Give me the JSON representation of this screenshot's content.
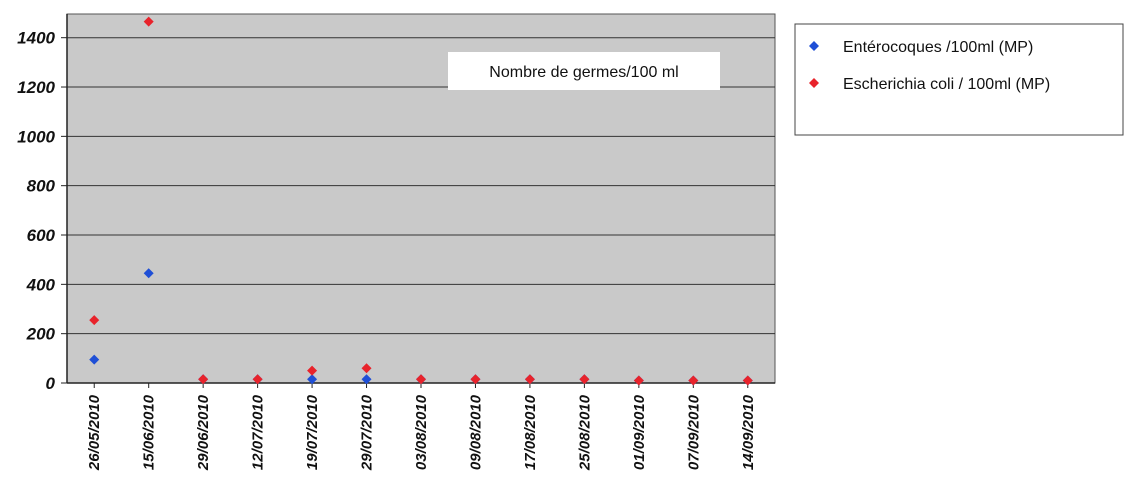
{
  "chart_data": {
    "type": "scatter",
    "title": "",
    "xlabel": "",
    "ylabel": "",
    "annotation": "Nombre de germes/100 ml",
    "categories": [
      "26/05/2010",
      "15/06/2010",
      "29/06/2010",
      "12/07/2010",
      "19/07/2010",
      "29/07/2010",
      "03/08/2010",
      "09/08/2010",
      "17/08/2010",
      "25/08/2010",
      "01/09/2010",
      "07/09/2010",
      "14/09/2010"
    ],
    "ylim": [
      0,
      1500
    ],
    "yticks": [
      0,
      200,
      400,
      600,
      800,
      1000,
      1200,
      1400
    ],
    "grid": true,
    "legend_position": "right",
    "series": [
      {
        "name": "Entérocoques /100ml (MP)",
        "color": "#1f4fd6",
        "marker": "diamond",
        "values": [
          95,
          445,
          15,
          15,
          15,
          15,
          15,
          15,
          15,
          15,
          10,
          10,
          10
        ]
      },
      {
        "name": "Escherichia coli / 100ml (MP)",
        "color": "#e8232b",
        "marker": "diamond",
        "values": [
          255,
          1465,
          15,
          15,
          50,
          60,
          15,
          15,
          15,
          15,
          10,
          10,
          10
        ]
      }
    ]
  }
}
